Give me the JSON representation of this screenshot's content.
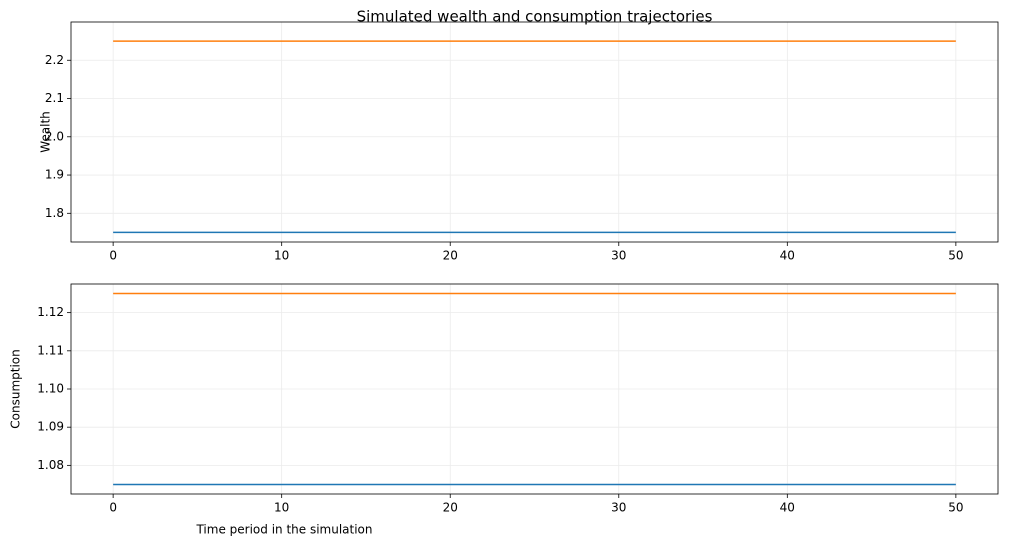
{
  "chart_data": [
    {
      "type": "line",
      "title": "Simulated wealth and consumption trajectories",
      "y_label": "Wealth",
      "x": [
        0,
        1,
        2,
        3,
        4,
        5,
        6,
        7,
        8,
        9,
        10,
        11,
        12,
        13,
        14,
        15,
        16,
        17,
        18,
        19,
        20,
        21,
        22,
        23,
        24,
        25,
        26,
        27,
        28,
        29,
        30,
        31,
        32,
        33,
        34,
        35,
        36,
        37,
        38,
        39,
        40,
        41,
        42,
        43,
        44,
        45,
        46,
        47,
        48,
        49,
        50
      ],
      "series": [
        {
          "color": "#1f77b4",
          "values": [
            1.75,
            1.75,
            1.75,
            1.75,
            1.75,
            1.75,
            1.75,
            1.75,
            1.75,
            1.75,
            1.75,
            1.75,
            1.75,
            1.75,
            1.75,
            1.75,
            1.75,
            1.75,
            1.75,
            1.75,
            1.75,
            1.75,
            1.75,
            1.75,
            1.75,
            1.75,
            1.75,
            1.75,
            1.75,
            1.75,
            1.75,
            1.75,
            1.75,
            1.75,
            1.75,
            1.75,
            1.75,
            1.75,
            1.75,
            1.75,
            1.75,
            1.75,
            1.75,
            1.75,
            1.75,
            1.75,
            1.75,
            1.75,
            1.75,
            1.75,
            1.75
          ]
        },
        {
          "color": "#ff7f0e",
          "values": [
            2.25,
            2.25,
            2.25,
            2.25,
            2.25,
            2.25,
            2.25,
            2.25,
            2.25,
            2.25,
            2.25,
            2.25,
            2.25,
            2.25,
            2.25,
            2.25,
            2.25,
            2.25,
            2.25,
            2.25,
            2.25,
            2.25,
            2.25,
            2.25,
            2.25,
            2.25,
            2.25,
            2.25,
            2.25,
            2.25,
            2.25,
            2.25,
            2.25,
            2.25,
            2.25,
            2.25,
            2.25,
            2.25,
            2.25,
            2.25,
            2.25,
            2.25,
            2.25,
            2.25,
            2.25,
            2.25,
            2.25,
            2.25,
            2.25,
            2.25,
            2.25
          ]
        }
      ],
      "xlim": [
        -2.5,
        52.5
      ],
      "xticks": [
        0,
        10,
        20,
        30,
        40,
        50
      ],
      "ylim": [
        1.725,
        2.3
      ],
      "yticks": [
        1.8,
        1.9,
        {
          "value": 2,
          "label": "2.0"
        },
        2.1,
        2.2
      ],
      "grid": true
    },
    {
      "type": "line",
      "x_label": "Time period in the simulation",
      "y_label": "Consumption",
      "x": [
        0,
        1,
        2,
        3,
        4,
        5,
        6,
        7,
        8,
        9,
        10,
        11,
        12,
        13,
        14,
        15,
        16,
        17,
        18,
        19,
        20,
        21,
        22,
        23,
        24,
        25,
        26,
        27,
        28,
        29,
        30,
        31,
        32,
        33,
        34,
        35,
        36,
        37,
        38,
        39,
        40,
        41,
        42,
        43,
        44,
        45,
        46,
        47,
        48,
        49,
        50
      ],
      "series": [
        {
          "color": "#1f77b4",
          "values": [
            1.075,
            1.075,
            1.075,
            1.075,
            1.075,
            1.075,
            1.075,
            1.075,
            1.075,
            1.075,
            1.075,
            1.075,
            1.075,
            1.075,
            1.075,
            1.075,
            1.075,
            1.075,
            1.075,
            1.075,
            1.075,
            1.075,
            1.075,
            1.075,
            1.075,
            1.075,
            1.075,
            1.075,
            1.075,
            1.075,
            1.075,
            1.075,
            1.075,
            1.075,
            1.075,
            1.075,
            1.075,
            1.075,
            1.075,
            1.075,
            1.075,
            1.075,
            1.075,
            1.075,
            1.075,
            1.075,
            1.075,
            1.075,
            1.075,
            1.075,
            1.075
          ]
        },
        {
          "color": "#ff7f0e",
          "values": [
            1.125,
            1.125,
            1.125,
            1.125,
            1.125,
            1.125,
            1.125,
            1.125,
            1.125,
            1.125,
            1.125,
            1.125,
            1.125,
            1.125,
            1.125,
            1.125,
            1.125,
            1.125,
            1.125,
            1.125,
            1.125,
            1.125,
            1.125,
            1.125,
            1.125,
            1.125,
            1.125,
            1.125,
            1.125,
            1.125,
            1.125,
            1.125,
            1.125,
            1.125,
            1.125,
            1.125,
            1.125,
            1.125,
            1.125,
            1.125,
            1.125,
            1.125,
            1.125,
            1.125,
            1.125,
            1.125,
            1.125,
            1.125,
            1.125,
            1.125,
            1.125
          ]
        }
      ],
      "xlim": [
        -2.5,
        52.5
      ],
      "xticks": [
        0,
        10,
        20,
        30,
        40,
        50
      ],
      "ylim": [
        1.0725,
        1.1275
      ],
      "yticks": [
        1.08,
        1.09,
        {
          "value": 1.1,
          "label": "1.10"
        },
        1.11,
        1.12
      ],
      "grid": true
    }
  ]
}
